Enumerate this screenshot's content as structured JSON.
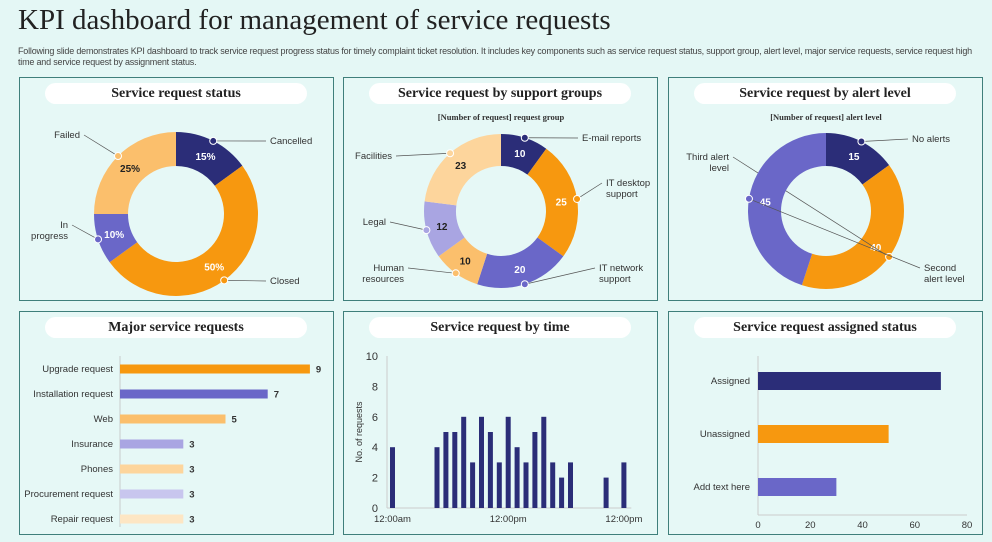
{
  "header": {
    "title": "KPI dashboard for management of service requests",
    "description": "Following slide demonstrates KPI dashboard to track service request progress status for timely complaint ticket resolution. It includes key components such as service request status, support group, alert level, major service requests, service request high time and service request by assignment status."
  },
  "colors": {
    "navy": "#2b2d78",
    "orange": "#f7980f",
    "purple": "#6a67c8",
    "light_orange": "#fbbf6c",
    "light_purple": "#a9a5e2",
    "peach": "#fdd59c",
    "lavender": "#c8c6ee",
    "pale": "#fde6c4"
  },
  "chart_data": [
    {
      "type": "pie",
      "title": "Service request status",
      "categories": [
        "Cancelled",
        "Closed",
        "In progress",
        "Failed"
      ],
      "values": [
        15,
        50,
        10,
        25
      ],
      "labels": [
        "15%",
        "50%",
        "10%",
        "25%"
      ],
      "colors": [
        "#2b2d78",
        "#f7980f",
        "#6a67c8",
        "#fbbf6c"
      ]
    },
    {
      "type": "pie",
      "title": "Service request by support groups",
      "subtitle": "[Number of request] request group",
      "categories": [
        "E-mail reports",
        "IT desktop support",
        "IT network support",
        "Human resources",
        "Legal",
        "Facilities"
      ],
      "values": [
        10,
        25,
        20,
        10,
        12,
        23
      ],
      "colors": [
        "#2b2d78",
        "#f7980f",
        "#6a67c8",
        "#fbbf6c",
        "#a9a5e2",
        "#fdd59c"
      ]
    },
    {
      "type": "pie",
      "title": "Service request by alert level",
      "subtitle": "[Number of request] alert level",
      "categories": [
        "No alerts",
        "Third alert level",
        "Second alert level"
      ],
      "values": [
        15,
        40,
        45
      ],
      "colors": [
        "#2b2d78",
        "#f7980f",
        "#6a67c8"
      ]
    },
    {
      "type": "bar",
      "orientation": "horizontal",
      "title": "Major service requests",
      "categories": [
        "Upgrade request",
        "Installation request",
        "Web",
        "Insurance",
        "Phones",
        "Procurement request",
        "Repair request"
      ],
      "values": [
        9,
        7,
        5,
        3,
        3,
        3,
        3
      ],
      "colors": [
        "#f7980f",
        "#6a67c8",
        "#fbbf6c",
        "#a9a5e2",
        "#fdd59c",
        "#c8c6ee",
        "#fde6c4"
      ]
    },
    {
      "type": "bar",
      "title": "Service request by time",
      "ylabel": "No. of requests",
      "ylim": [
        0,
        10
      ],
      "yticks": [
        0,
        2,
        4,
        6,
        8,
        10
      ],
      "xtick_labels": [
        {
          "i": 0,
          "label": "12:00am"
        },
        {
          "i": 13,
          "label": "12:00pm"
        },
        {
          "i": 26,
          "label": "12:00pm"
        }
      ],
      "values": [
        4,
        0,
        0,
        0,
        0,
        4,
        5,
        5,
        6,
        3,
        6,
        5,
        3,
        6,
        4,
        3,
        5,
        6,
        3,
        2,
        3,
        0,
        0,
        0,
        2,
        0,
        3
      ],
      "color": "#2b2d78"
    },
    {
      "type": "bar",
      "orientation": "horizontal",
      "title": "Service request assigned status",
      "categories": [
        "Assigned",
        "Unassigned",
        "Add text here"
      ],
      "values": [
        70,
        50,
        30
      ],
      "xlim": [
        0,
        80
      ],
      "xticks": [
        0,
        20,
        40,
        60,
        80
      ],
      "colors": [
        "#2b2d78",
        "#f7980f",
        "#6a67c8"
      ]
    }
  ]
}
